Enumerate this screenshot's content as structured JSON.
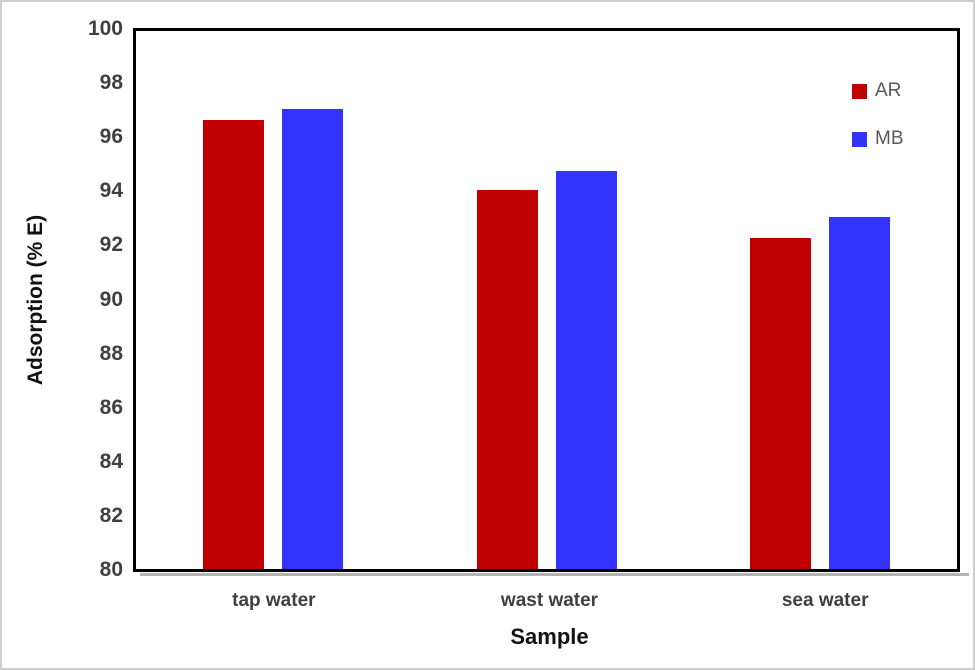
{
  "frame": {
    "background": "#FFFFFF",
    "border_color": "#CDCDCD"
  },
  "chart_data": {
    "type": "bar",
    "title": "",
    "xlabel": "Sample",
    "ylabel": "Adsorption (% E)",
    "ylim": [
      80,
      100
    ],
    "yticks": [
      100,
      98,
      96,
      94,
      92,
      90,
      88,
      86,
      84,
      82,
      80
    ],
    "categories": [
      "tap water",
      "wast water",
      "sea water"
    ],
    "series": [
      {
        "name": "AR",
        "color": "#C00000",
        "values": [
          96.7,
          94.1,
          92.3
        ]
      },
      {
        "name": "MB",
        "color": "#3333FF",
        "values": [
          97.1,
          94.8,
          93.1
        ]
      }
    ],
    "grid": false,
    "legend_position": "top-right"
  },
  "colors": {
    "axis_line": "#000000",
    "axis_shadow": "#B3B3B3",
    "tick_text": "#404040",
    "category_text": "#404040",
    "legend_text": "#595959",
    "axis_title_text": "#111111"
  }
}
